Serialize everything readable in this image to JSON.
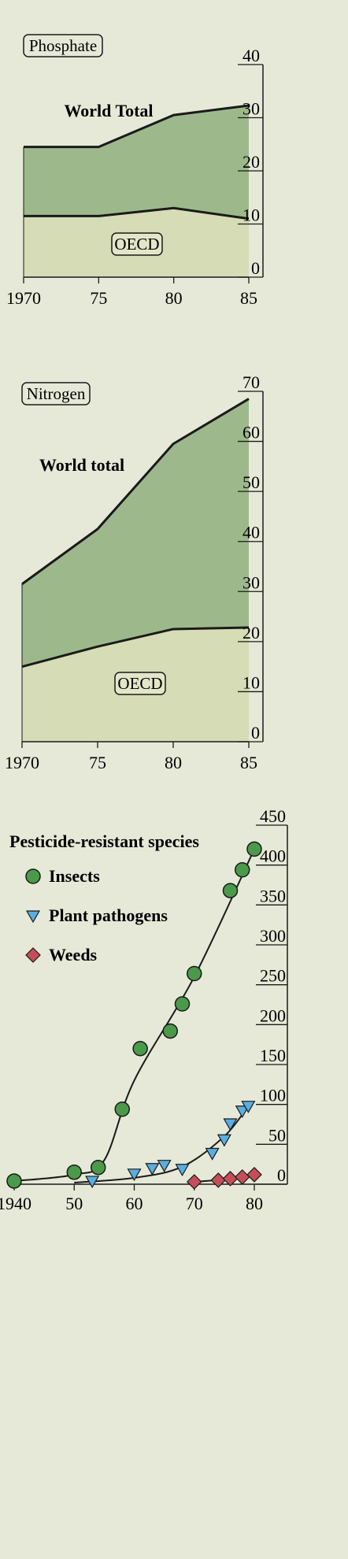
{
  "chart_data": [
    {
      "id": "phosphate",
      "type": "area",
      "title": "Phosphate",
      "x": [
        1970,
        1975,
        1980,
        1985
      ],
      "x_tick_labels": [
        "1970",
        "75",
        "80",
        "85"
      ],
      "ylim": [
        0,
        40
      ],
      "y_ticks": [
        0,
        10,
        20,
        30,
        40
      ],
      "series": [
        {
          "name": "World Total",
          "values": [
            24.5,
            24.5,
            30.5,
            32.3
          ],
          "color": "#9db98c"
        },
        {
          "name": "OECD",
          "values": [
            11.5,
            11.5,
            13,
            11
          ],
          "color": "#d5dcb6"
        }
      ]
    },
    {
      "id": "nitrogen",
      "type": "area",
      "title": "Nitrogen",
      "x": [
        1970,
        1975,
        1980,
        1985
      ],
      "x_tick_labels": [
        "1970",
        "75",
        "80",
        "85"
      ],
      "ylim": [
        0,
        70
      ],
      "y_ticks": [
        0,
        10,
        20,
        30,
        40,
        50,
        60,
        70
      ],
      "series": [
        {
          "name": "World total",
          "values": [
            31.5,
            42.5,
            59.5,
            68.5
          ],
          "color": "#9db98c"
        },
        {
          "name": "OECD",
          "values": [
            15,
            19,
            22.5,
            22.8
          ],
          "color": "#d5dcb6"
        }
      ]
    },
    {
      "id": "pesticide",
      "type": "scatter",
      "title": "Pesticide-resistant species",
      "x_tick_labels": [
        "1940",
        "50",
        "60",
        "70",
        "80"
      ],
      "x_ticks": [
        1940,
        1950,
        1960,
        1970,
        1980
      ],
      "xlim": [
        1940,
        1980
      ],
      "ylim": [
        0,
        450
      ],
      "y_ticks": [
        0,
        50,
        100,
        150,
        200,
        250,
        300,
        350,
        400,
        450
      ],
      "series": [
        {
          "name": "Insects",
          "marker": "circle",
          "color": "#4a9a4a",
          "x": [
            1940,
            1950,
            1954,
            1958,
            1961,
            1966,
            1968,
            1970,
            1976,
            1978,
            1980
          ],
          "y": [
            4,
            15,
            21,
            94,
            170,
            192,
            226,
            264,
            368,
            394,
            420
          ]
        },
        {
          "name": "Plant pathogens",
          "marker": "triangle",
          "color": "#5aaee0",
          "x": [
            1953,
            1960,
            1963,
            1965,
            1968,
            1973,
            1975,
            1976,
            1978,
            1979
          ],
          "y": [
            4,
            13,
            20,
            24,
            19,
            39,
            56,
            76,
            92,
            98
          ]
        },
        {
          "name": "Weeds",
          "marker": "diamond",
          "color": "#c44f58",
          "x": [
            1970,
            1974,
            1976,
            1978,
            1980
          ],
          "y": [
            3,
            5,
            7,
            9,
            12
          ]
        }
      ]
    }
  ]
}
